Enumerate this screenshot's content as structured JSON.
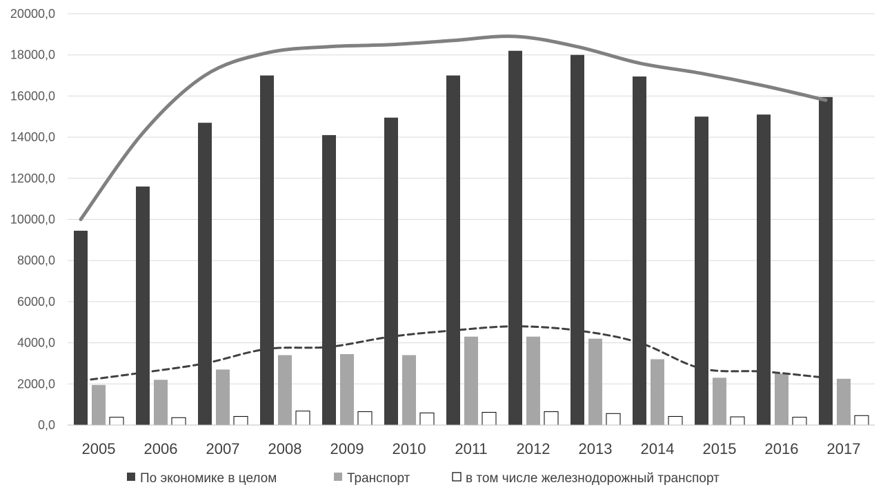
{
  "chart_data": {
    "type": "bar",
    "categories": [
      "2005",
      "2006",
      "2007",
      "2008",
      "2009",
      "2010",
      "2011",
      "2012",
      "2013",
      "2014",
      "2015",
      "2016",
      "2017"
    ],
    "ylim": [
      0,
      20000
    ],
    "yticks": [
      "0,0",
      "2000,0",
      "4000,0",
      "6000,0",
      "8000,0",
      "10000,0",
      "12000,0",
      "14000,0",
      "16000,0",
      "18000,0",
      "20000,0"
    ],
    "grid": true,
    "legend_position": "bottom",
    "series": [
      {
        "name": "По экономике в целом",
        "color": "#404040",
        "values": [
          9450,
          11600,
          14700,
          17000,
          14100,
          14950,
          17000,
          18200,
          18000,
          16950,
          15000,
          15100,
          15950
        ]
      },
      {
        "name": "Транспорт",
        "color": "#a6a6a6",
        "values": [
          1950,
          2200,
          2700,
          3400,
          3450,
          3400,
          4300,
          4300,
          4200,
          3200,
          2300,
          2500,
          2250
        ]
      },
      {
        "name": "в том числе железнодорожный транспорт",
        "color": "#ffffff",
        "values": [
          380,
          360,
          420,
          680,
          650,
          590,
          620,
          650,
          560,
          420,
          400,
          380,
          460
        ]
      }
    ],
    "trendlines": [
      {
        "style": "solid",
        "color": "#808080",
        "values": [
          10000,
          14200,
          17000,
          18100,
          18400,
          18500,
          18700,
          18900,
          18400,
          17600,
          17100,
          16500,
          15800
        ]
      },
      {
        "style": "dashed",
        "color": "#404040",
        "values": [
          2150,
          2550,
          3000,
          3700,
          3800,
          4300,
          4600,
          4800,
          4600,
          4000,
          2750,
          2600,
          2300
        ]
      }
    ]
  }
}
